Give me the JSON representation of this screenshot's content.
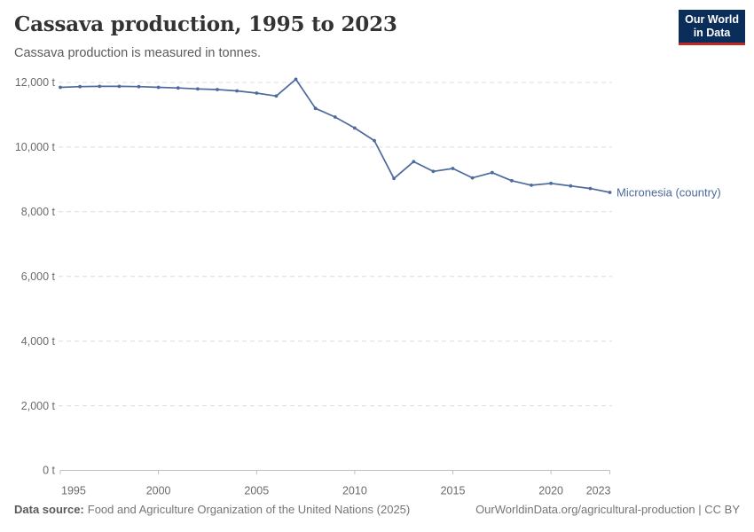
{
  "header": {
    "title": "Cassava production, 1995 to 2023",
    "subtitle": "Cassava production is measured in tonnes."
  },
  "logo": {
    "line1": "Our World",
    "line2": "in Data"
  },
  "footer": {
    "source_label": "Data source:",
    "source_text": "Food and Agriculture Organization of the United Nations (2025)",
    "link": "OurWorldinData.org/agricultural-production | CC BY"
  },
  "colors": {
    "line": "#4c6a9c",
    "series_label": "#4c6a9c",
    "grid": "#dcdcdc",
    "axis": "#bfbfbf",
    "tick_text": "#6b6b6b",
    "title": "#333333",
    "subtitle": "#5b5b5b",
    "footer_text": "#757575",
    "logo_bg": "#0a2d5a",
    "logo_accent": "#be2823"
  },
  "chart_data": {
    "type": "line",
    "title": "Cassava production, 1995 to 2023",
    "subtitle": "Cassava production is measured in tonnes.",
    "unit": "tonnes",
    "x": [
      1995,
      1996,
      1997,
      1998,
      1999,
      2000,
      2001,
      2002,
      2003,
      2004,
      2005,
      2006,
      2007,
      2008,
      2009,
      2010,
      2011,
      2012,
      2013,
      2014,
      2015,
      2016,
      2017,
      2018,
      2019,
      2020,
      2021,
      2022,
      2023
    ],
    "series": [
      {
        "name": "Micronesia (country)",
        "color": "#4c6a9c",
        "values": [
          11850,
          11870,
          11880,
          11880,
          11870,
          11850,
          11830,
          11800,
          11780,
          11740,
          11670,
          11580,
          12100,
          11200,
          10930,
          10590,
          10200,
          9030,
          9550,
          9250,
          9340,
          9050,
          9210,
          8960,
          8820,
          8880,
          8800,
          8720,
          8600
        ]
      }
    ],
    "ylim": [
      0,
      12000
    ],
    "y_ticks": [
      0,
      2000,
      4000,
      6000,
      8000,
      10000,
      12000
    ],
    "y_tick_labels": [
      "0 t",
      "2,000 t",
      "4,000 t",
      "6,000 t",
      "8,000 t",
      "10,000 t",
      "12,000 t"
    ],
    "x_ticks": [
      1995,
      2000,
      2005,
      2010,
      2015,
      2020,
      2023
    ],
    "x_tick_labels": [
      "1995",
      "2000",
      "2005",
      "2010",
      "2015",
      "2020",
      "2023"
    ],
    "grid": "horizontal-dashed",
    "legend": "inline-end-label"
  }
}
